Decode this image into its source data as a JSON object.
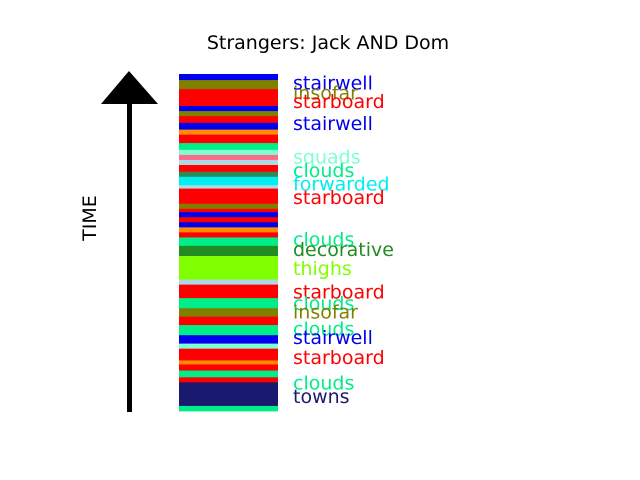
{
  "chart_data": {
    "type": "bar",
    "title": "Strangers: Jack AND Dom",
    "ylabel": "TIME",
    "colors": {
      "stairwell": "#0000ee",
      "insofar": "#808000",
      "starboard": "#ff0000",
      "squads": "#7fffd4",
      "clouds": "#00ee88",
      "forwarded": "#00eeee",
      "decorative": "#228b22",
      "thighs": "#7fff00",
      "towns": "#191970",
      "pink": "#ff6a8a",
      "orange": "#ff8c00",
      "teal": "#2e8b57",
      "lightblue": "#add8e6"
    },
    "bands": [
      {
        "word": "stairwell",
        "start": 0.0,
        "end": 0.018
      },
      {
        "word": "insofar",
        "start": 0.018,
        "end": 0.045
      },
      {
        "word": "starboard",
        "start": 0.045,
        "end": 0.095
      },
      {
        "word": "stairwell",
        "start": 0.095,
        "end": 0.11
      },
      {
        "word": "insofar",
        "start": 0.11,
        "end": 0.125
      },
      {
        "word": "starboard",
        "start": 0.125,
        "end": 0.145
      },
      {
        "word": "stairwell",
        "start": 0.145,
        "end": 0.165
      },
      {
        "word": "orange",
        "start": 0.165,
        "end": 0.18
      },
      {
        "word": "starboard",
        "start": 0.18,
        "end": 0.205
      },
      {
        "word": "clouds",
        "start": 0.205,
        "end": 0.225
      },
      {
        "word": "squads",
        "start": 0.225,
        "end": 0.24
      },
      {
        "word": "pink",
        "start": 0.24,
        "end": 0.255
      },
      {
        "word": "lightblue",
        "start": 0.255,
        "end": 0.27
      },
      {
        "word": "starboard",
        "start": 0.27,
        "end": 0.29
      },
      {
        "word": "teal",
        "start": 0.29,
        "end": 0.305
      },
      {
        "word": "forwarded",
        "start": 0.305,
        "end": 0.33
      },
      {
        "word": "lightblue",
        "start": 0.33,
        "end": 0.34
      },
      {
        "word": "starboard",
        "start": 0.34,
        "end": 0.385
      },
      {
        "word": "insofar",
        "start": 0.385,
        "end": 0.4
      },
      {
        "word": "starboard",
        "start": 0.4,
        "end": 0.41
      },
      {
        "word": "stairwell",
        "start": 0.41,
        "end": 0.425
      },
      {
        "word": "starboard",
        "start": 0.425,
        "end": 0.44
      },
      {
        "word": "stairwell",
        "start": 0.44,
        "end": 0.455
      },
      {
        "word": "orange",
        "start": 0.455,
        "end": 0.47
      },
      {
        "word": "starboard",
        "start": 0.47,
        "end": 0.485
      },
      {
        "word": "clouds",
        "start": 0.485,
        "end": 0.51
      },
      {
        "word": "decorative",
        "start": 0.51,
        "end": 0.54
      },
      {
        "word": "thighs",
        "start": 0.54,
        "end": 0.61
      },
      {
        "word": "lightblue",
        "start": 0.61,
        "end": 0.625
      },
      {
        "word": "starboard",
        "start": 0.625,
        "end": 0.665
      },
      {
        "word": "clouds",
        "start": 0.665,
        "end": 0.695
      },
      {
        "word": "insofar",
        "start": 0.695,
        "end": 0.72
      },
      {
        "word": "starboard",
        "start": 0.72,
        "end": 0.745
      },
      {
        "word": "clouds",
        "start": 0.745,
        "end": 0.775
      },
      {
        "word": "stairwell",
        "start": 0.775,
        "end": 0.8
      },
      {
        "word": "squads",
        "start": 0.8,
        "end": 0.815
      },
      {
        "word": "starboard",
        "start": 0.815,
        "end": 0.85
      },
      {
        "word": "orange",
        "start": 0.85,
        "end": 0.862
      },
      {
        "word": "starboard",
        "start": 0.862,
        "end": 0.88
      },
      {
        "word": "clouds",
        "start": 0.88,
        "end": 0.9
      },
      {
        "word": "starboard",
        "start": 0.9,
        "end": 0.915
      },
      {
        "word": "towns",
        "start": 0.915,
        "end": 0.985
      },
      {
        "word": "clouds",
        "start": 0.985,
        "end": 1.0
      }
    ],
    "labels": [
      {
        "text": "stairwell",
        "color": "#0000ee",
        "pos": 0.025
      },
      {
        "text": "insofar",
        "color": "#808000",
        "pos": 0.055
      },
      {
        "text": "starboard",
        "color": "#ff0000",
        "pos": 0.08
      },
      {
        "text": "stairwell",
        "color": "#0000ee",
        "pos": 0.145
      },
      {
        "text": "squads",
        "color": "#7fffd4",
        "pos": 0.245
      },
      {
        "text": "clouds",
        "color": "#00ee88",
        "pos": 0.285
      },
      {
        "text": "forwarded",
        "color": "#00eeee",
        "pos": 0.325
      },
      {
        "text": "starboard",
        "color": "#ff0000",
        "pos": 0.365
      },
      {
        "text": "clouds",
        "color": "#00ee88",
        "pos": 0.49
      },
      {
        "text": "decorative",
        "color": "#228b22",
        "pos": 0.52
      },
      {
        "text": "thighs",
        "color": "#7fff00",
        "pos": 0.575
      },
      {
        "text": "starboard",
        "color": "#ff0000",
        "pos": 0.645
      },
      {
        "text": "clouds",
        "color": "#00ee88",
        "pos": 0.68
      },
      {
        "text": "insofar",
        "color": "#808000",
        "pos": 0.705
      },
      {
        "text": "clouds",
        "color": "#00ee88",
        "pos": 0.755
      },
      {
        "text": "stairwell",
        "color": "#0000ee",
        "pos": 0.78
      },
      {
        "text": "starboard",
        "color": "#ff0000",
        "pos": 0.84
      },
      {
        "text": "clouds",
        "color": "#00ee88",
        "pos": 0.915
      },
      {
        "text": "towns",
        "color": "#191970",
        "pos": 0.955
      }
    ]
  }
}
